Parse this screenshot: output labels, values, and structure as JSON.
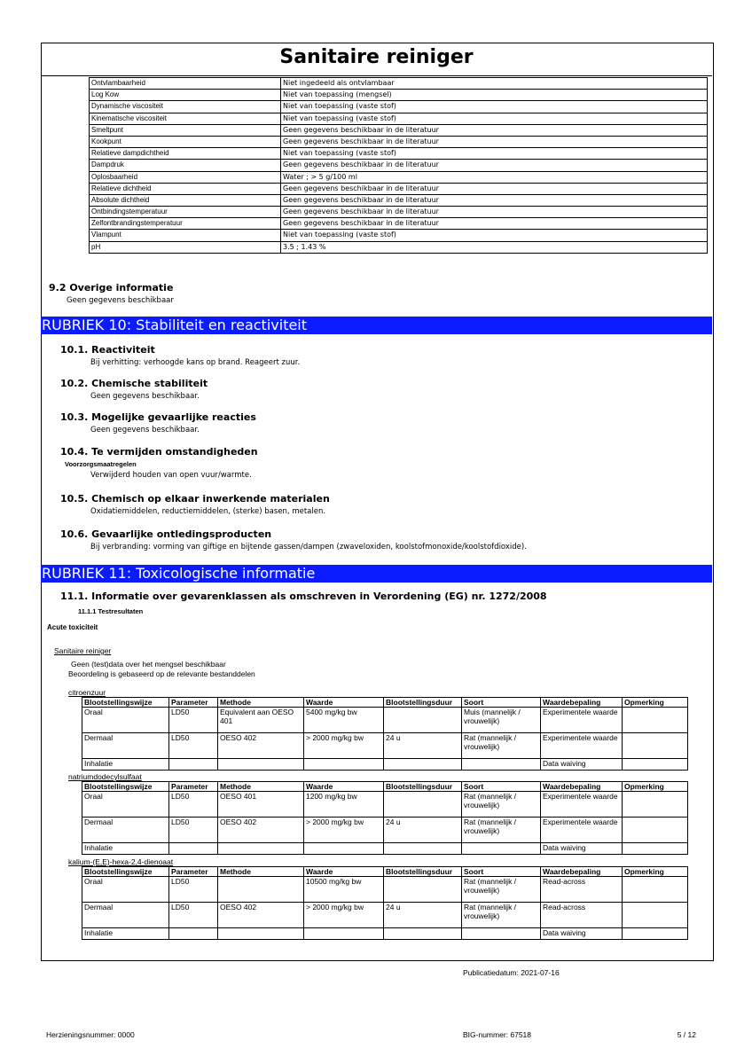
{
  "header": {
    "title": "Sanitaire reiniger"
  },
  "properties": [
    [
      "Ontvlambaarheid",
      "Niet ingedeeld als ontvlambaar"
    ],
    [
      "Log Kow",
      "Niet van toepassing (mengsel)"
    ],
    [
      "Dynamische viscositeit",
      "Niet van toepassing (vaste stof)"
    ],
    [
      "Kinematische viscositeit",
      "Niet van toepassing (vaste stof)"
    ],
    [
      "Smeltpunt",
      "Geen gegevens beschikbaar in de literatuur"
    ],
    [
      "Kookpunt",
      "Geen gegevens beschikbaar in de literatuur"
    ],
    [
      "Relatieve dampdichtheid",
      "Niet van toepassing (vaste stof)"
    ],
    [
      "Dampdruk",
      "Geen gegevens beschikbaar in de literatuur"
    ],
    [
      "Oplosbaarheid",
      "Water ; > 5 g/100 ml"
    ],
    [
      "Relatieve dichtheid",
      "Geen gegevens beschikbaar in de literatuur"
    ],
    [
      "Absolute dichtheid",
      "Geen gegevens beschikbaar in de literatuur"
    ],
    [
      "Ontbindingstemperatuur",
      "Geen gegevens beschikbaar in de literatuur"
    ],
    [
      "Zelfontbrandingstemperatuur",
      "Geen gegevens beschikbaar in de literatuur"
    ],
    [
      "Vlampunt",
      "Niet van toepassing (vaste stof)"
    ],
    [
      "pH",
      "3.5 ; 1.43 %"
    ]
  ],
  "section_9_2": {
    "heading": "9.2 Overige informatie",
    "text": "Geen gegevens beschikbaar"
  },
  "rubriek_10": {
    "title": "RUBRIEK 10: Stabiliteit en reactiviteit",
    "items": [
      {
        "heading": "10.1. Reactiviteit",
        "text": "Bij verhitting: verhoogde kans op brand. Reageert zuur."
      },
      {
        "heading": "10.2. Chemische stabiliteit",
        "text": "Geen gegevens beschikbaar."
      },
      {
        "heading": "10.3. Mogelijke gevaarlijke reacties",
        "text": "Geen gegevens beschikbaar."
      },
      {
        "heading": "10.4. Te vermijden omstandigheden",
        "subheading": "Voorzorgsmaatregelen",
        "text": "Verwijderd houden van open vuur/warmte."
      },
      {
        "heading": "10.5. Chemisch op elkaar inwerkende materialen",
        "text": "Oxidatiemiddelen, reductiemiddelen, (sterke) basen, metalen."
      },
      {
        "heading": "10.6. Gevaarlijke ontledingsproducten",
        "text": "Bij verbranding: vorming van giftige en bijtende gassen/dampen (zwaveloxiden, koolstofmonoxide/koolstofdioxide)."
      }
    ]
  },
  "rubriek_11": {
    "title": "RUBRIEK 11: Toxicologische informatie",
    "heading": "11.1. Informatie over gevarenklassen als omschreven in Verordening (EG) nr. 1272/2008",
    "subheading": "11.1.1 Testresultaten",
    "label": "Acute toxiciteit",
    "mixture": "Sanitaire reiniger",
    "notes": [
      "Geen (test)data over het mengsel beschikbaar",
      "Beoordeling is gebaseerd op de relevante bestanddelen"
    ],
    "tables": [
      {
        "substance": "citroenzuur",
        "header": [
          "Blootstellingswijze",
          "Parameter",
          "Methode",
          "Waarde",
          "Blootstellingsduur",
          "Soort",
          "Waardebepaling",
          "Opmerking"
        ],
        "rows": [
          [
            "Oraal",
            "LD50",
            "Equivalent aan OESO 401",
            "5400 mg/kg bw",
            null,
            "Muis (mannelijk / vrouwelijk)",
            "Experimentele waarde",
            null
          ],
          [
            "Dermaal",
            "LD50",
            "OESO 402",
            "> 2000 mg/kg bw",
            "24 u",
            "Rat (mannelijk / vrouwelijk)",
            "Experimentele waarde",
            null
          ],
          [
            "Inhalatie",
            null,
            null,
            null,
            null,
            null,
            "Data waiving",
            null
          ]
        ]
      },
      {
        "substance": "natriumdodecylsulfaat",
        "header": [
          "Blootstellingswijze",
          "Parameter",
          "Methode",
          "Waarde",
          "Blootstellingsduur",
          "Soort",
          "Waardebepaling",
          "Opmerking"
        ],
        "rows": [
          [
            "Oraal",
            "LD50",
            "OESO 401",
            "1200 mg/kg bw",
            null,
            "Rat (mannelijk / vrouwelijk)",
            "Experimentele waarde",
            null
          ],
          [
            "Dermaal",
            "LD50",
            "OESO 402",
            "> 2000 mg/kg bw",
            "24 u",
            "Rat (mannelijk / vrouwelijk)",
            "Experimentele waarde",
            null
          ],
          [
            "Inhalatie",
            null,
            null,
            null,
            null,
            null,
            "Data waiving",
            null
          ]
        ]
      },
      {
        "substance": "kalium-(E,E)-hexa-2,4-dienoaat",
        "header": [
          "Blootstellingswijze",
          "Parameter",
          "Methode",
          "Waarde",
          "Blootstellingsduur",
          "Soort",
          "Waardebepaling",
          "Opmerking"
        ],
        "rows": [
          [
            "Oraal",
            "LD50",
            null,
            "10500 mg/kg bw",
            null,
            "Rat (mannelijk / vrouwelijk)",
            "Read-across",
            null
          ],
          [
            "Dermaal",
            "LD50",
            "OESO 402",
            "> 2000 mg/kg bw",
            "24 u",
            "Rat (mannelijk / vrouwelijk)",
            "Read-across",
            null
          ],
          [
            "Inhalatie",
            null,
            null,
            null,
            null,
            null,
            "Data waiving",
            null
          ]
        ]
      }
    ]
  },
  "footer": {
    "publication": "Publicatiedatum: 2021-07-16",
    "revision": "Herzieningsnummer: 0000",
    "big": "BIG-nummer: 67518",
    "page": "5 / 12"
  }
}
